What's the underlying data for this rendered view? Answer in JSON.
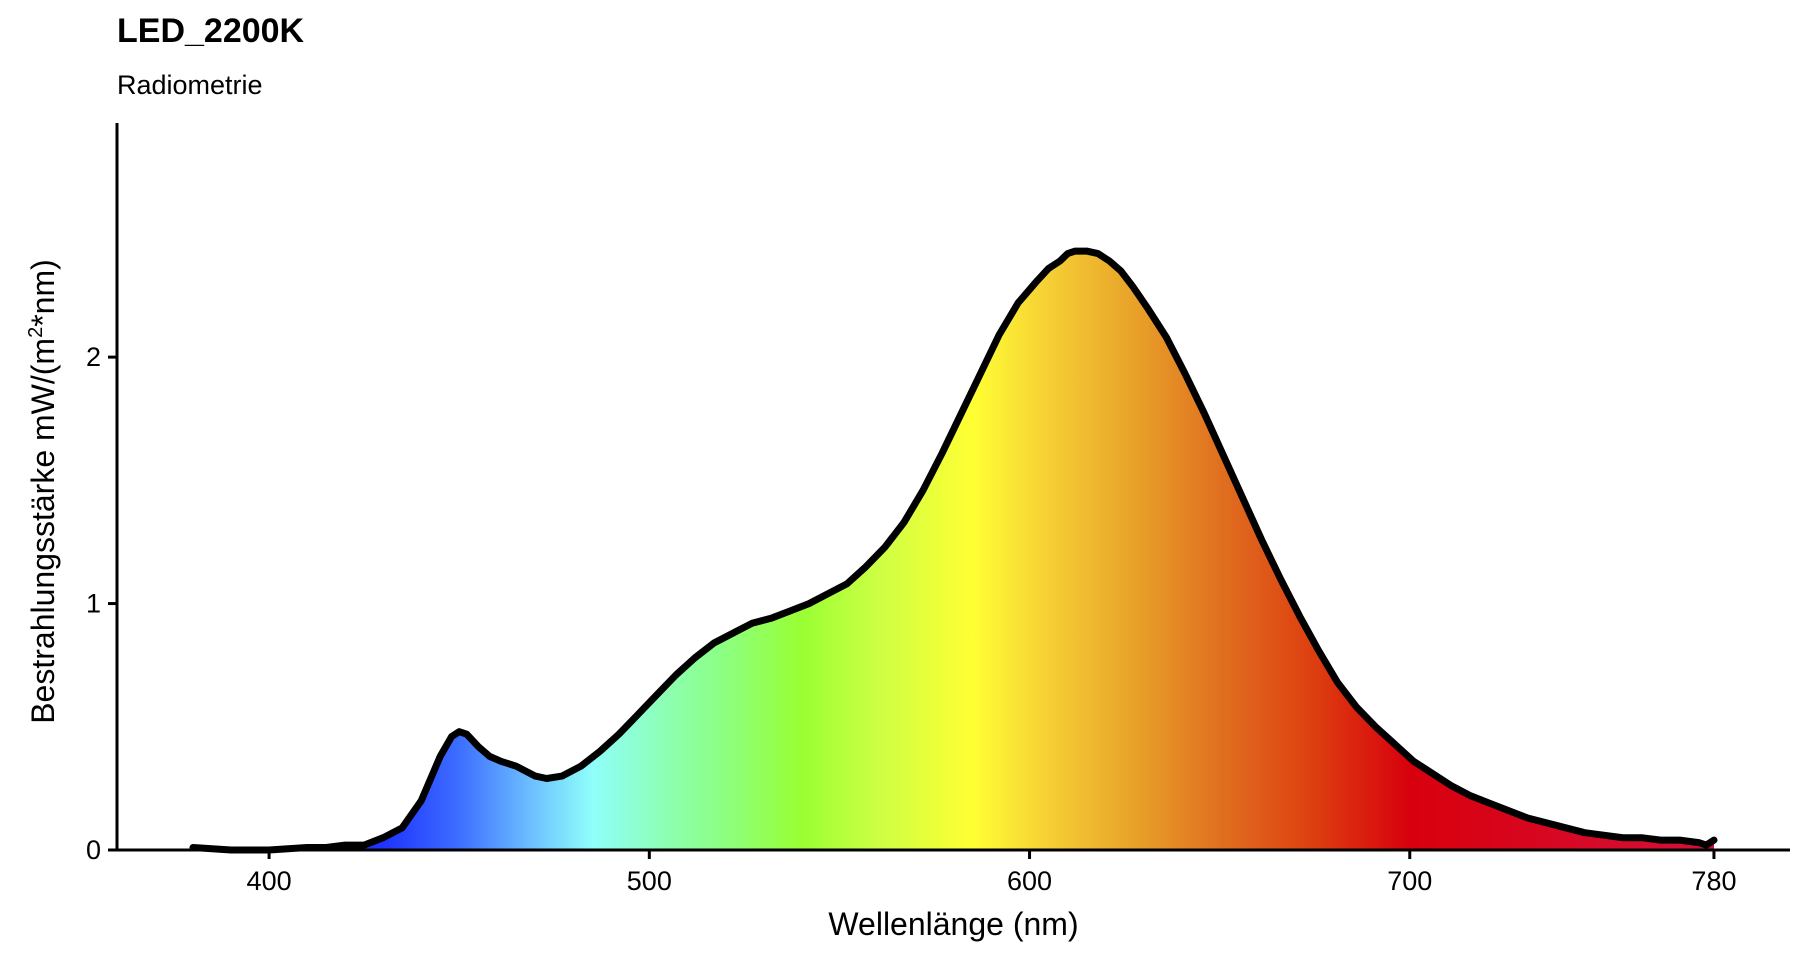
{
  "title": "LED_2200K",
  "subtitle": "Radiometrie",
  "chart_data": {
    "type": "area",
    "title": "LED_2200K",
    "subtitle": "Radiometrie",
    "xlabel": "Wellenlänge (nm)",
    "ylabel_main": "Bestrahlungsstärke  mW/(m",
    "ylabel_sup": "2",
    "ylabel_end": "*nm)",
    "xlim": [
      360,
      800
    ],
    "ylim": [
      0,
      2.95
    ],
    "x_ticks": [
      400,
      500,
      600,
      700,
      780
    ],
    "y_ticks": [
      0,
      1,
      2
    ],
    "grid": false,
    "fill": "visible-spectrum-gradient",
    "line_color": "#000000",
    "spectrum_colors": [
      {
        "nm": 430,
        "color": "#1f33ff"
      },
      {
        "nm": 450,
        "color": "#3d6eff"
      },
      {
        "nm": 470,
        "color": "#6fc4ff"
      },
      {
        "nm": 485,
        "color": "#8ffffa"
      },
      {
        "nm": 505,
        "color": "#8dffb1"
      },
      {
        "nm": 520,
        "color": "#8cff80"
      },
      {
        "nm": 540,
        "color": "#99ff33"
      },
      {
        "nm": 560,
        "color": "#ccff44"
      },
      {
        "nm": 585,
        "color": "#ffff33"
      },
      {
        "nm": 605,
        "color": "#f6cf35"
      },
      {
        "nm": 625,
        "color": "#e9a72a"
      },
      {
        "nm": 650,
        "color": "#e07020"
      },
      {
        "nm": 675,
        "color": "#dd3e10"
      },
      {
        "nm": 700,
        "color": "#d8000d"
      },
      {
        "nm": 780,
        "color": "#d5103a"
      }
    ],
    "x": [
      380,
      390,
      400,
      410,
      415,
      420,
      425,
      430,
      435,
      440,
      445,
      448,
      450,
      452,
      455,
      458,
      461,
      465,
      470,
      473,
      477,
      482,
      487,
      492,
      497,
      502,
      507,
      512,
      517,
      522,
      527,
      532,
      537,
      542,
      547,
      552,
      557,
      562,
      567,
      572,
      577,
      582,
      587,
      592,
      597,
      602,
      605,
      608,
      610,
      612,
      615,
      618,
      621,
      624,
      627,
      631,
      636,
      641,
      646,
      651,
      656,
      661,
      666,
      671,
      676,
      681,
      686,
      691,
      696,
      701,
      706,
      711,
      716,
      721,
      726,
      731,
      736,
      741,
      746,
      751,
      756,
      761,
      766,
      771,
      776,
      778,
      780
    ],
    "y": [
      0.01,
      0.0,
      0.0,
      0.01,
      0.01,
      0.02,
      0.02,
      0.05,
      0.09,
      0.2,
      0.38,
      0.46,
      0.48,
      0.47,
      0.42,
      0.38,
      0.36,
      0.34,
      0.3,
      0.29,
      0.3,
      0.34,
      0.4,
      0.47,
      0.55,
      0.63,
      0.71,
      0.78,
      0.84,
      0.88,
      0.92,
      0.94,
      0.97,
      1.0,
      1.04,
      1.08,
      1.15,
      1.23,
      1.33,
      1.46,
      1.61,
      1.77,
      1.93,
      2.09,
      2.22,
      2.31,
      2.36,
      2.39,
      2.42,
      2.43,
      2.43,
      2.42,
      2.39,
      2.35,
      2.29,
      2.2,
      2.08,
      1.93,
      1.77,
      1.6,
      1.43,
      1.26,
      1.1,
      0.95,
      0.81,
      0.68,
      0.58,
      0.5,
      0.43,
      0.36,
      0.31,
      0.26,
      0.22,
      0.19,
      0.16,
      0.13,
      0.11,
      0.09,
      0.07,
      0.06,
      0.05,
      0.05,
      0.04,
      0.04,
      0.03,
      0.02,
      0.04
    ]
  }
}
